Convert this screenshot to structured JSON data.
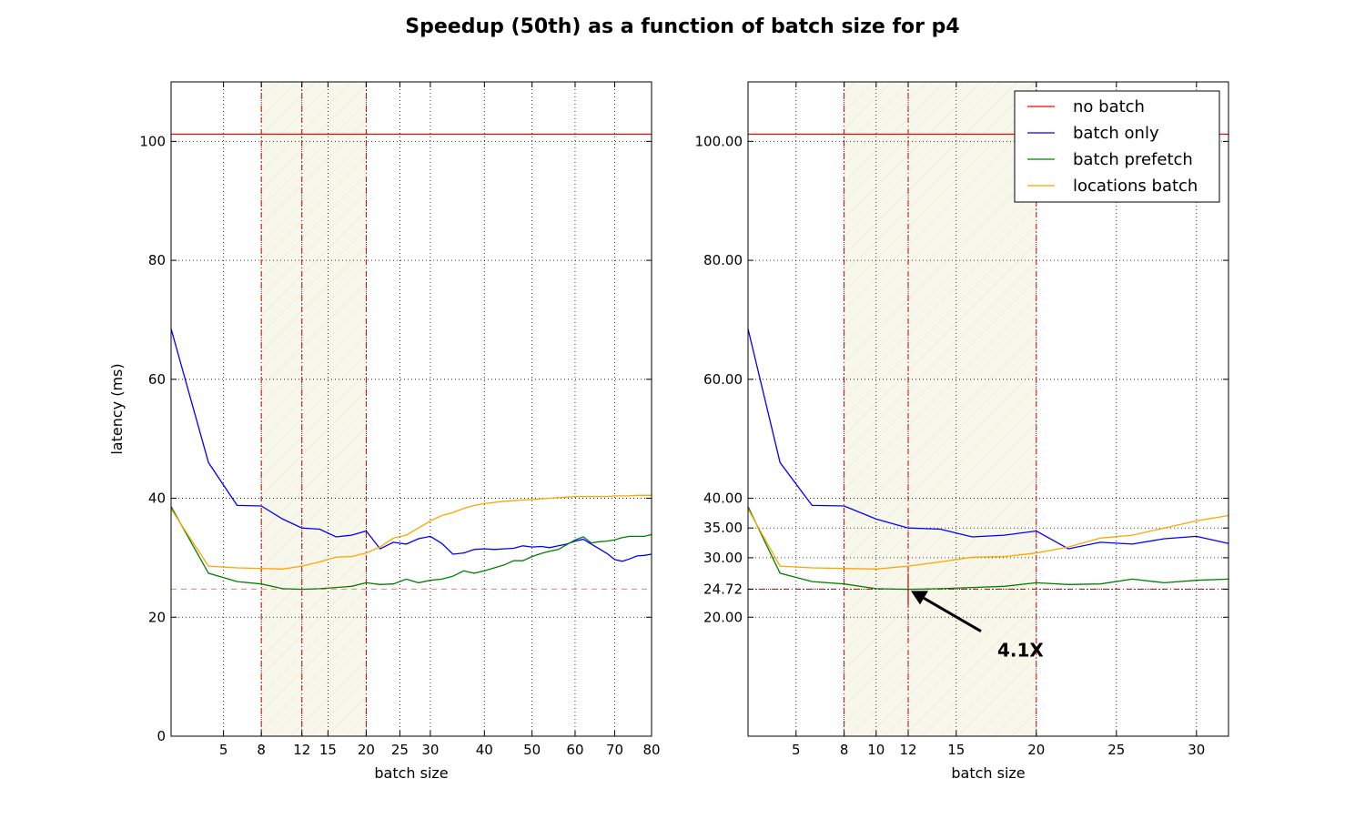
{
  "suptitle": "Speedup (50th) as a function of batch size for p4",
  "colors": {
    "no_batch": "#ff0000",
    "batch_only": "#0000ff",
    "batch_prefetch": "#008000",
    "locations_batch": "#ffa500",
    "band_fill": "#f5f3e1",
    "marker": "#cc0000",
    "best_line": "#ff8a80"
  },
  "chart_data": [
    {
      "type": "line",
      "title": "",
      "xlabel": "batch size",
      "ylabel": "latency (ms)",
      "xlim": [
        2,
        80
      ],
      "ylim": [
        0,
        110
      ],
      "grid": true,
      "legend": null,
      "xticks": [
        5,
        8,
        12,
        15,
        20,
        25,
        30,
        40,
        50,
        60,
        70,
        80
      ],
      "xtick_labels": [
        "5",
        "8",
        "12",
        "15",
        "20",
        "25",
        "30",
        "40",
        "50",
        "60",
        "70",
        "80"
      ],
      "yticks": [
        0,
        20,
        40,
        60,
        80,
        100
      ],
      "ytick_labels": [
        "0",
        "20",
        "40",
        "60",
        "80",
        "100"
      ],
      "shaded_band": [
        8,
        20
      ],
      "vertical_markers": [
        8,
        12,
        20
      ],
      "best_latency_line": 24.72,
      "series": [
        {
          "name": "no batch",
          "color_key": "no_batch",
          "x": [
            2,
            80
          ],
          "y": [
            101.2,
            101.2
          ]
        },
        {
          "name": "batch only",
          "color_key": "batch_only",
          "x": [
            2,
            4,
            6,
            8,
            10,
            12,
            14,
            16,
            18,
            20,
            22,
            24,
            26,
            28,
            30,
            32,
            34,
            36,
            38,
            40,
            42,
            44,
            46,
            48,
            50,
            52,
            54,
            56,
            58,
            60,
            62,
            64,
            66,
            68,
            70,
            72,
            74,
            76,
            78,
            80
          ],
          "y": [
            68.5,
            46,
            38.8,
            38.7,
            36.5,
            35,
            34.8,
            33.5,
            33.8,
            34.5,
            31.5,
            32.6,
            32.3,
            33.2,
            33.6,
            32.4,
            30.6,
            30.8,
            31.4,
            31.5,
            31.4,
            31.5,
            31.6,
            32,
            31.8,
            31.9,
            31.7,
            32,
            32.3,
            32.8,
            33.1,
            32.3,
            31.5,
            30.7,
            29.7,
            29.4,
            29.8,
            30.3,
            30.4,
            30.6
          ]
        },
        {
          "name": "batch prefetch",
          "color_key": "batch_prefetch",
          "x": [
            2,
            4,
            6,
            8,
            10,
            12,
            14,
            16,
            18,
            20,
            22,
            24,
            26,
            28,
            30,
            32,
            34,
            36,
            38,
            40,
            42,
            44,
            46,
            48,
            50,
            52,
            54,
            56,
            58,
            60,
            62,
            64,
            66,
            68,
            70,
            72,
            74,
            76,
            78,
            80
          ],
          "y": [
            38.6,
            27.4,
            26,
            25.6,
            24.8,
            24.7,
            24.8,
            25,
            25.2,
            25.8,
            25.5,
            25.6,
            26.4,
            25.8,
            26.2,
            26.4,
            26.9,
            27.8,
            27.4,
            27.8,
            28.3,
            28.8,
            29.5,
            29.5,
            30.2,
            30.7,
            31.1,
            31.4,
            32.2,
            33,
            33.5,
            32.5,
            32.7,
            32.8,
            33,
            33.4,
            33.6,
            33.6,
            33.6,
            33.9
          ]
        },
        {
          "name": "locations batch",
          "color_key": "locations_batch",
          "x": [
            2,
            4,
            6,
            8,
            10,
            12,
            14,
            16,
            18,
            20,
            22,
            24,
            26,
            28,
            30,
            32,
            34,
            36,
            38,
            40,
            42,
            44,
            46,
            48,
            50,
            52,
            54,
            56,
            58,
            60,
            62,
            64,
            66,
            68,
            70,
            72,
            74,
            76,
            78,
            80
          ],
          "y": [
            38.2,
            28.6,
            28.3,
            28.2,
            28.1,
            28.6,
            29.3,
            30.1,
            30.2,
            30.8,
            31.8,
            33.3,
            33.8,
            35,
            36.2,
            37.1,
            37.6,
            38.3,
            38.8,
            39.1,
            39.3,
            39.5,
            39.6,
            39.7,
            39.8,
            39.9,
            40,
            40.1,
            40.2,
            40.3,
            40.3,
            40.3,
            40.3,
            40.3,
            40.4,
            40.4,
            40.4,
            40.5,
            40.5,
            40.5
          ]
        }
      ]
    },
    {
      "type": "line",
      "title": "",
      "xlabel": "batch size",
      "ylabel": "",
      "xlim": [
        2,
        32
      ],
      "ylim": [
        0,
        110
      ],
      "grid": true,
      "legend": "top-right",
      "xticks": [
        5,
        8,
        10,
        12,
        15,
        20,
        25,
        30
      ],
      "xtick_labels": [
        "5",
        "8",
        "10",
        "12",
        "15",
        "20",
        "25",
        "30"
      ],
      "yticks": [
        20,
        24.72,
        30,
        35,
        40,
        60,
        80,
        100
      ],
      "ytick_labels": [
        "20.00",
        "24.72",
        "30.00",
        "35.00",
        "40.00",
        "60.00",
        "80.00",
        "100.00"
      ],
      "shaded_band": [
        8,
        20
      ],
      "vertical_markers": [
        8,
        12,
        20
      ],
      "best_latency_line": 24.72,
      "annotation": {
        "text": "4.1X",
        "point_x": 12,
        "point_y": 24.72,
        "text_x": 17,
        "text_y": 15.5
      },
      "series": [
        {
          "name": "no batch",
          "color_key": "no_batch",
          "x": [
            2,
            32
          ],
          "y": [
            101.2,
            101.2
          ]
        },
        {
          "name": "batch only",
          "color_key": "batch_only",
          "x": [
            2,
            4,
            6,
            8,
            10,
            12,
            14,
            16,
            18,
            20,
            22,
            24,
            26,
            28,
            30,
            32
          ],
          "y": [
            68.5,
            46,
            38.8,
            38.7,
            36.5,
            35,
            34.8,
            33.5,
            33.8,
            34.5,
            31.5,
            32.6,
            32.3,
            33.2,
            33.6,
            32.4
          ]
        },
        {
          "name": "batch prefetch",
          "color_key": "batch_prefetch",
          "x": [
            2,
            4,
            6,
            8,
            10,
            12,
            14,
            16,
            18,
            20,
            22,
            24,
            26,
            28,
            30,
            32
          ],
          "y": [
            38.6,
            27.4,
            26,
            25.6,
            24.8,
            24.7,
            24.8,
            25,
            25.2,
            25.8,
            25.5,
            25.6,
            26.4,
            25.8,
            26.2,
            26.4
          ]
        },
        {
          "name": "locations batch",
          "color_key": "locations_batch",
          "x": [
            2,
            4,
            6,
            8,
            10,
            12,
            14,
            16,
            18,
            20,
            22,
            24,
            26,
            28,
            30,
            32
          ],
          "y": [
            38.2,
            28.6,
            28.3,
            28.2,
            28.1,
            28.6,
            29.3,
            30.1,
            30.2,
            30.8,
            31.8,
            33.3,
            33.8,
            35,
            36.2,
            37.1
          ]
        }
      ]
    }
  ]
}
